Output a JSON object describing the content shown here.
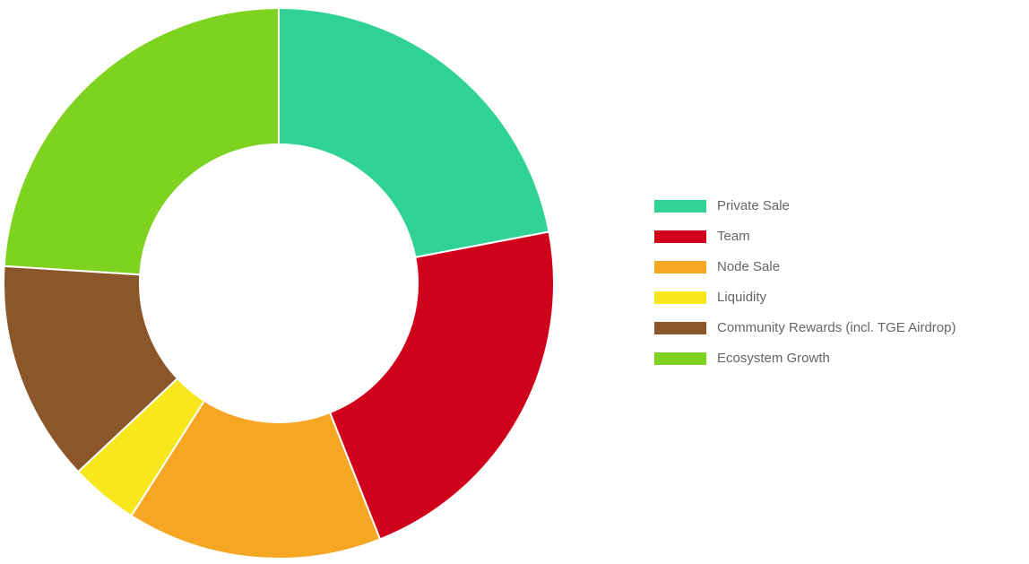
{
  "chart_data": {
    "type": "doughnut",
    "categories": [
      "Private Sale",
      "Team",
      "Node Sale",
      "Liquidity",
      "Community Rewards (incl. TGE Airdrop)",
      "Ecosystem Growth"
    ],
    "values": [
      22,
      22,
      15,
      4,
      13,
      24
    ],
    "colors": [
      "#31d295",
      "#d0021b",
      "#f5a623",
      "#f8e71c",
      "#8b572a",
      "#7ed321"
    ],
    "legend": "right"
  }
}
